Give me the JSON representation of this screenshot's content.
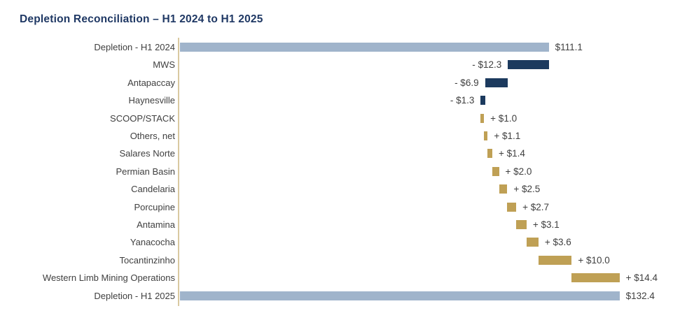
{
  "title": "Depletion Reconciliation – H1 2024 to H1 2025",
  "chart_data": {
    "type": "bar",
    "subtype": "horizontal-waterfall",
    "title": "Depletion Reconciliation – H1 2024 to H1 2025",
    "unit": "$ (dollars, abbreviated)",
    "xlim": [
      0,
      140
    ],
    "grid": false,
    "legend": "none",
    "colors": {
      "total": "#A0B4CB",
      "decrease": "#1C3A5E",
      "increase": "#BFA055",
      "axis": "#D9C9A0",
      "title": "#1F3864",
      "text": "#3F3F3F"
    },
    "items": [
      {
        "label": "Depletion - H1 2024",
        "value": 111.1,
        "kind": "total",
        "value_label": "$111.1"
      },
      {
        "label": "MWS",
        "value": -12.3,
        "kind": "decrease",
        "value_label": "- $12.3"
      },
      {
        "label": "Antapaccay",
        "value": -6.9,
        "kind": "decrease",
        "value_label": "- $6.9"
      },
      {
        "label": "Haynesville",
        "value": -1.3,
        "kind": "decrease",
        "value_label": "- $1.3"
      },
      {
        "label": "SCOOP/STACK",
        "value": 1.0,
        "kind": "increase",
        "value_label": "+ $1.0"
      },
      {
        "label": "Others, net",
        "value": 1.1,
        "kind": "increase",
        "value_label": "+ $1.1"
      },
      {
        "label": "Salares Norte",
        "value": 1.4,
        "kind": "increase",
        "value_label": "+ $1.4"
      },
      {
        "label": "Permian Basin",
        "value": 2.0,
        "kind": "increase",
        "value_label": "+ $2.0"
      },
      {
        "label": "Candelaria",
        "value": 2.5,
        "kind": "increase",
        "value_label": "+ $2.5"
      },
      {
        "label": "Porcupine",
        "value": 2.7,
        "kind": "increase",
        "value_label": "+ $2.7"
      },
      {
        "label": "Antamina",
        "value": 3.1,
        "kind": "increase",
        "value_label": "+ $3.1"
      },
      {
        "label": "Yanacocha",
        "value": 3.6,
        "kind": "increase",
        "value_label": "+ $3.6"
      },
      {
        "label": "Tocantinzinho",
        "value": 10.0,
        "kind": "increase",
        "value_label": "+ $10.0"
      },
      {
        "label": "Western Limb Mining Operations",
        "value": 14.4,
        "kind": "increase",
        "value_label": "+ $14.4"
      },
      {
        "label": "Depletion - H1 2025",
        "value": 132.4,
        "kind": "total",
        "value_label": "$132.4"
      }
    ]
  }
}
